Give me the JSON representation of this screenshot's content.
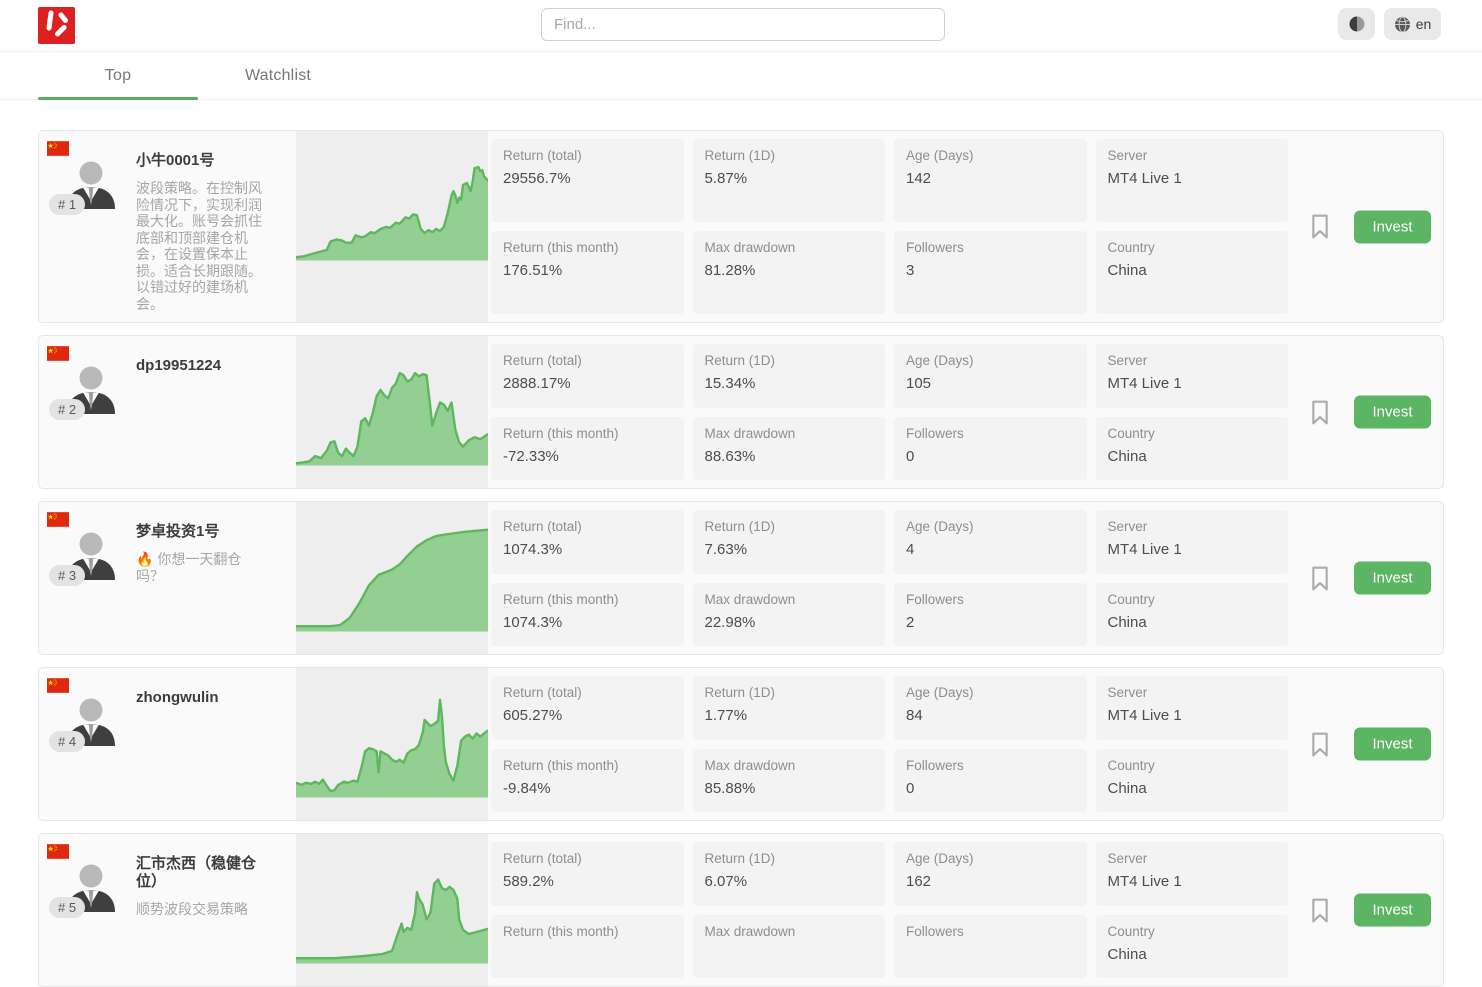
{
  "header": {
    "search_placeholder": "Find...",
    "language": "en"
  },
  "tabs": [
    {
      "label": "Top"
    },
    {
      "label": "Watchlist"
    }
  ],
  "card_actions": {
    "invest": "Invest"
  },
  "colors": {
    "accent_green": "#53ae57",
    "invest_green": "#5bb563",
    "chart_line": "#5db75d",
    "chart_fill": "#93cf93",
    "logo_red": "#dd2121",
    "flag_red": "#de2910",
    "flag_star_yellow": "#ffde00"
  },
  "sparkline_type": "area",
  "cards": [
    {
      "rank": "# 1",
      "name": "小牛0001号",
      "description": "波段策略。在控制风险情况下，实现利润最大化。账号会抓住底部和顶部建仓机会，在设置保本止损。适合长期跟随。以错过好的建场机会。",
      "country_flag": "china",
      "stats": [
        {
          "label": "Return (total)",
          "value": "29556.7%"
        },
        {
          "label": "Return (1D)",
          "value": "5.87%"
        },
        {
          "label": "Age (Days)",
          "value": "142"
        },
        {
          "label": "Server",
          "value": "MT4 Live 1"
        },
        {
          "label": "Return (this month)",
          "value": "176.51%"
        },
        {
          "label": "Max drawdown",
          "value": "81.28%"
        },
        {
          "label": "Followers",
          "value": "3"
        },
        {
          "label": "Country",
          "value": "China"
        }
      ],
      "chart": {
        "points": [
          [
            0,
            0.03
          ],
          [
            4,
            0.04
          ],
          [
            8,
            0.06
          ],
          [
            12,
            0.08
          ],
          [
            16,
            0.1
          ],
          [
            18,
            0.18
          ],
          [
            21,
            0.2
          ],
          [
            24,
            0.19
          ],
          [
            26,
            0.17
          ],
          [
            29,
            0.17
          ],
          [
            31,
            0.24
          ],
          [
            34,
            0.22
          ],
          [
            36,
            0.23
          ],
          [
            39,
            0.27
          ],
          [
            41,
            0.26
          ],
          [
            44,
            0.3
          ],
          [
            47,
            0.32
          ],
          [
            49,
            0.31
          ],
          [
            52,
            0.36
          ],
          [
            54,
            0.35
          ],
          [
            57,
            0.41
          ],
          [
            59,
            0.4
          ],
          [
            61,
            0.44
          ],
          [
            63,
            0.43
          ],
          [
            65,
            0.3
          ],
          [
            67,
            0.26
          ],
          [
            69,
            0.29
          ],
          [
            71,
            0.27
          ],
          [
            73,
            0.3
          ],
          [
            75,
            0.28
          ],
          [
            77,
            0.32
          ],
          [
            79,
            0.45
          ],
          [
            81,
            0.62
          ],
          [
            82,
            0.66
          ],
          [
            83,
            0.62
          ],
          [
            84,
            0.55
          ],
          [
            85,
            0.6
          ],
          [
            86,
            0.58
          ],
          [
            87,
            0.72
          ],
          [
            89,
            0.74
          ],
          [
            90,
            0.7
          ],
          [
            91,
            0.66
          ],
          [
            92,
            0.75
          ],
          [
            93,
            0.88
          ],
          [
            95,
            0.89
          ],
          [
            96,
            0.85
          ],
          [
            97,
            0.86
          ],
          [
            98,
            0.8
          ],
          [
            100,
            0.76
          ]
        ]
      }
    },
    {
      "rank": "# 2",
      "name": "dp19951224",
      "description": "",
      "country_flag": "china",
      "stats": [
        {
          "label": "Return (total)",
          "value": "2888.17%"
        },
        {
          "label": "Return (1D)",
          "value": "15.34%"
        },
        {
          "label": "Age (Days)",
          "value": "105"
        },
        {
          "label": "Server",
          "value": "MT4 Live 1"
        },
        {
          "label": "Return (this month)",
          "value": "-72.33%"
        },
        {
          "label": "Max drawdown",
          "value": "88.63%"
        },
        {
          "label": "Followers",
          "value": "0"
        },
        {
          "label": "Country",
          "value": "China"
        }
      ],
      "chart": {
        "points": [
          [
            0,
            0.02
          ],
          [
            4,
            0.03
          ],
          [
            7,
            0.04
          ],
          [
            10,
            0.09
          ],
          [
            13,
            0.07
          ],
          [
            16,
            0.14
          ],
          [
            18,
            0.22
          ],
          [
            20,
            0.23
          ],
          [
            22,
            0.12
          ],
          [
            24,
            0.09
          ],
          [
            26,
            0.16
          ],
          [
            28,
            0.12
          ],
          [
            30,
            0.09
          ],
          [
            32,
            0.18
          ],
          [
            34,
            0.42
          ],
          [
            36,
            0.45
          ],
          [
            38,
            0.38
          ],
          [
            40,
            0.5
          ],
          [
            42,
            0.66
          ],
          [
            44,
            0.72
          ],
          [
            46,
            0.67
          ],
          [
            48,
            0.64
          ],
          [
            50,
            0.74
          ],
          [
            52,
            0.78
          ],
          [
            54,
            0.88
          ],
          [
            56,
            0.86
          ],
          [
            58,
            0.8
          ],
          [
            60,
            0.82
          ],
          [
            62,
            0.88
          ],
          [
            64,
            0.85
          ],
          [
            66,
            0.87
          ],
          [
            68,
            0.86
          ],
          [
            70,
            0.55
          ],
          [
            71,
            0.38
          ],
          [
            73,
            0.5
          ],
          [
            75,
            0.6
          ],
          [
            77,
            0.58
          ],
          [
            79,
            0.52
          ],
          [
            81,
            0.6
          ],
          [
            83,
            0.34
          ],
          [
            85,
            0.22
          ],
          [
            87,
            0.18
          ],
          [
            90,
            0.24
          ],
          [
            93,
            0.27
          ],
          [
            96,
            0.25
          ],
          [
            100,
            0.3
          ]
        ]
      }
    },
    {
      "rank": "# 3",
      "name": "梦卓投资1号",
      "description": "🔥 你想一天翻仓吗？",
      "country_flag": "china",
      "stats": [
        {
          "label": "Return (total)",
          "value": "1074.3%"
        },
        {
          "label": "Return (1D)",
          "value": "7.63%"
        },
        {
          "label": "Age (Days)",
          "value": "4"
        },
        {
          "label": "Server",
          "value": "MT4 Live 1"
        },
        {
          "label": "Return (this month)",
          "value": "1074.3%"
        },
        {
          "label": "Max drawdown",
          "value": "22.98%"
        },
        {
          "label": "Followers",
          "value": "2"
        },
        {
          "label": "Country",
          "value": "China"
        }
      ],
      "chart": {
        "points": [
          [
            0,
            0.05
          ],
          [
            18,
            0.05
          ],
          [
            23,
            0.06
          ],
          [
            28,
            0.13
          ],
          [
            33,
            0.27
          ],
          [
            38,
            0.44
          ],
          [
            43,
            0.54
          ],
          [
            46,
            0.56
          ],
          [
            50,
            0.59
          ],
          [
            54,
            0.64
          ],
          [
            58,
            0.72
          ],
          [
            63,
            0.81
          ],
          [
            68,
            0.87
          ],
          [
            73,
            0.91
          ],
          [
            80,
            0.93
          ],
          [
            88,
            0.95
          ],
          [
            100,
            0.97
          ]
        ]
      }
    },
    {
      "rank": "# 4",
      "name": "zhongwulin",
      "description": "",
      "country_flag": "china",
      "stats": [
        {
          "label": "Return (total)",
          "value": "605.27%"
        },
        {
          "label": "Return (1D)",
          "value": "1.77%"
        },
        {
          "label": "Age (Days)",
          "value": "84"
        },
        {
          "label": "Server",
          "value": "MT4 Live 1"
        },
        {
          "label": "Return (this month)",
          "value": "-9.84%"
        },
        {
          "label": "Max drawdown",
          "value": "85.88%"
        },
        {
          "label": "Followers",
          "value": "0"
        },
        {
          "label": "Country",
          "value": "China"
        }
      ],
      "chart": {
        "points": [
          [
            0,
            0.14
          ],
          [
            3,
            0.12
          ],
          [
            5,
            0.14
          ],
          [
            8,
            0.13
          ],
          [
            10,
            0.15
          ],
          [
            12,
            0.13
          ],
          [
            14,
            0.17
          ],
          [
            16,
            0.11
          ],
          [
            18,
            0.06
          ],
          [
            20,
            0.07
          ],
          [
            22,
            0.12
          ],
          [
            25,
            0.15
          ],
          [
            27,
            0.14
          ],
          [
            30,
            0.16
          ],
          [
            32,
            0.15
          ],
          [
            34,
            0.28
          ],
          [
            36,
            0.44
          ],
          [
            38,
            0.47
          ],
          [
            40,
            0.46
          ],
          [
            42,
            0.44
          ],
          [
            43,
            0.24
          ],
          [
            44,
            0.44
          ],
          [
            46,
            0.42
          ],
          [
            48,
            0.4
          ],
          [
            50,
            0.36
          ],
          [
            52,
            0.34
          ],
          [
            54,
            0.36
          ],
          [
            56,
            0.33
          ],
          [
            58,
            0.42
          ],
          [
            60,
            0.45
          ],
          [
            62,
            0.46
          ],
          [
            64,
            0.5
          ],
          [
            66,
            0.62
          ],
          [
            67,
            0.74
          ],
          [
            68,
            0.72
          ],
          [
            70,
            0.68
          ],
          [
            72,
            0.7
          ],
          [
            74,
            0.73
          ],
          [
            75,
            0.93
          ],
          [
            76,
            0.78
          ],
          [
            77,
            0.5
          ],
          [
            78,
            0.34
          ],
          [
            80,
            0.22
          ],
          [
            82,
            0.16
          ],
          [
            84,
            0.3
          ],
          [
            86,
            0.54
          ],
          [
            88,
            0.58
          ],
          [
            90,
            0.6
          ],
          [
            92,
            0.56
          ],
          [
            94,
            0.61
          ],
          [
            96,
            0.58
          ],
          [
            98,
            0.61
          ],
          [
            100,
            0.64
          ]
        ]
      }
    },
    {
      "rank": "# 5",
      "name": "汇市杰西（稳健仓位）",
      "description": "顺势波段交易策略",
      "country_flag": "china",
      "stats": [
        {
          "label": "Return (total)",
          "value": "589.2%"
        },
        {
          "label": "Return (1D)",
          "value": "6.07%"
        },
        {
          "label": "Age (Days)",
          "value": "162"
        },
        {
          "label": "Server",
          "value": "MT4 Live 1"
        },
        {
          "label": "Return (this month)",
          "value": ""
        },
        {
          "label": "Max drawdown",
          "value": ""
        },
        {
          "label": "Followers",
          "value": ""
        },
        {
          "label": "Country",
          "value": "China"
        }
      ],
      "chart": {
        "points": [
          [
            0,
            0.05
          ],
          [
            20,
            0.05
          ],
          [
            35,
            0.07
          ],
          [
            45,
            0.09
          ],
          [
            50,
            0.12
          ],
          [
            53,
            0.28
          ],
          [
            55,
            0.38
          ],
          [
            56,
            0.3
          ],
          [
            58,
            0.34
          ],
          [
            60,
            0.32
          ],
          [
            62,
            0.48
          ],
          [
            63,
            0.68
          ],
          [
            64,
            0.62
          ],
          [
            66,
            0.56
          ],
          [
            68,
            0.42
          ],
          [
            70,
            0.48
          ],
          [
            72,
            0.76
          ],
          [
            74,
            0.8
          ],
          [
            76,
            0.72
          ],
          [
            78,
            0.7
          ],
          [
            80,
            0.73
          ],
          [
            82,
            0.7
          ],
          [
            84,
            0.62
          ],
          [
            85,
            0.42
          ],
          [
            87,
            0.32
          ],
          [
            90,
            0.28
          ],
          [
            94,
            0.3
          ],
          [
            100,
            0.33
          ]
        ]
      }
    }
  ]
}
